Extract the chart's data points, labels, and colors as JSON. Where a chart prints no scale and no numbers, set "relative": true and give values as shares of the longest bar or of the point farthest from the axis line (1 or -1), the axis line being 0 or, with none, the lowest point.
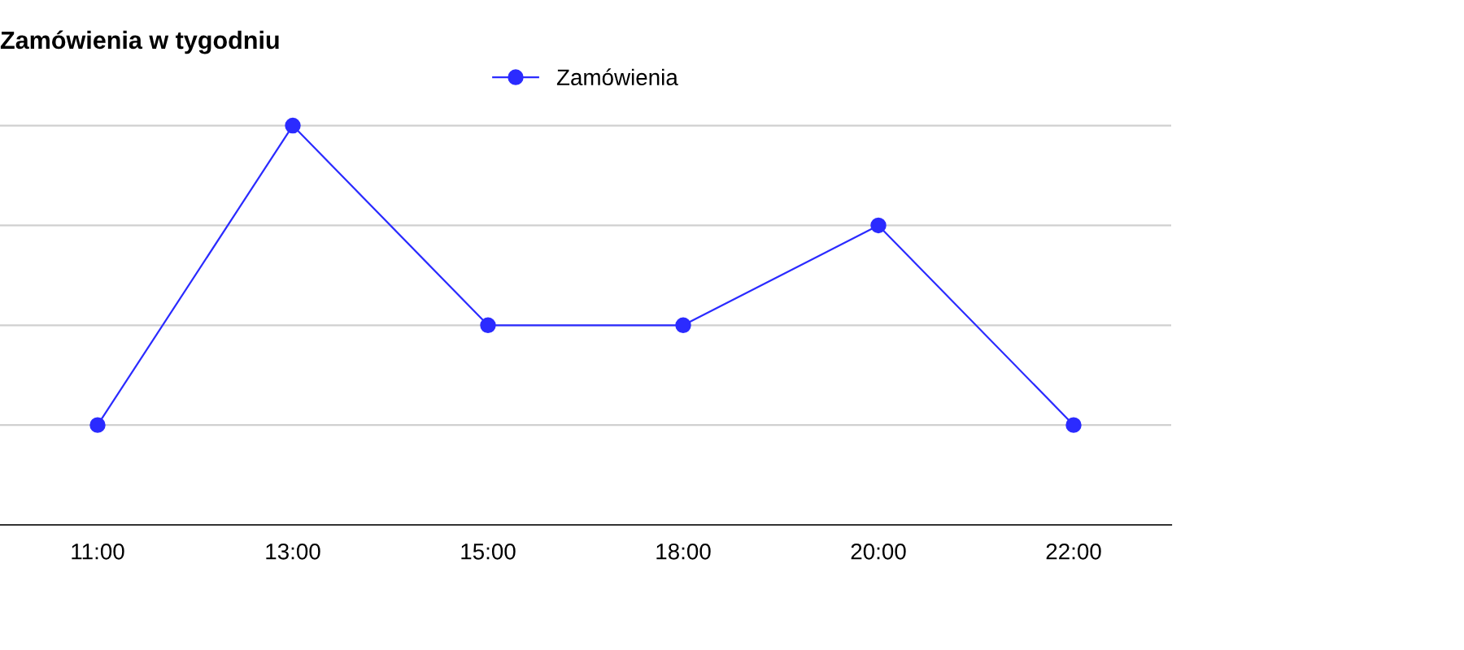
{
  "chart_data": {
    "type": "line",
    "title": "Zamówienia w tygodniu",
    "categories": [
      "11:00",
      "13:00",
      "15:00",
      "18:00",
      "20:00",
      "22:00"
    ],
    "series": [
      {
        "name": "Zamówienia",
        "color": "#2b2bff",
        "values": [
          0.25,
          1,
          0.5,
          0.5,
          0.75,
          0.25
        ]
      }
    ],
    "relative": true,
    "grid": "y",
    "legend": "top",
    "marker": "circle",
    "line_style": "solid"
  }
}
